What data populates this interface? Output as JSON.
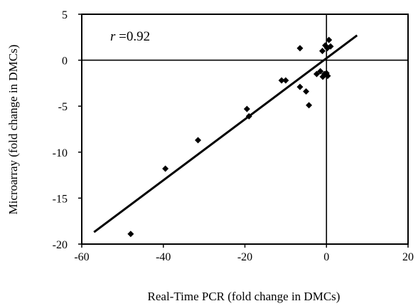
{
  "chart_data": {
    "type": "scatter",
    "xlabel": "Real-Time PCR (fold change in DMCs)",
    "ylabel": "Microarray (fold change in DMCs)",
    "xlim": [
      -60,
      20
    ],
    "ylim": [
      -20,
      5
    ],
    "x_ticks": [
      -60,
      -40,
      -20,
      0,
      20
    ],
    "y_ticks": [
      5,
      0,
      -5,
      -10,
      -15,
      -20
    ],
    "annotation": {
      "r_symbol": "r",
      "r_text": " =0.92"
    },
    "grid": false,
    "legend": "none",
    "reference_lines": {
      "x": 0,
      "y": 0
    },
    "series": [
      {
        "points": [
          {
            "x": -48.0,
            "y": -18.9
          },
          {
            "x": -39.5,
            "y": -11.8
          },
          {
            "x": -31.5,
            "y": -8.7
          },
          {
            "x": -19.5,
            "y": -5.3
          },
          {
            "x": -19.0,
            "y": -6.1
          },
          {
            "x": -11.0,
            "y": -2.2
          },
          {
            "x": -10.0,
            "y": -2.2
          },
          {
            "x": -6.5,
            "y": 1.3
          },
          {
            "x": -6.5,
            "y": -2.9
          },
          {
            "x": -5.0,
            "y": -3.4
          },
          {
            "x": -4.3,
            "y": -4.9
          },
          {
            "x": -2.4,
            "y": -1.5
          },
          {
            "x": -1.5,
            "y": -1.2
          },
          {
            "x": -1.0,
            "y": 1.0
          },
          {
            "x": -0.9,
            "y": -1.8
          },
          {
            "x": -0.5,
            "y": -1.5
          },
          {
            "x": -0.3,
            "y": 1.6
          },
          {
            "x": 0.0,
            "y": -1.4
          },
          {
            "x": 0.2,
            "y": 1.3
          },
          {
            "x": 0.3,
            "y": -1.7
          },
          {
            "x": 0.6,
            "y": 2.2
          },
          {
            "x": 1.0,
            "y": 1.5
          }
        ]
      }
    ],
    "trendline": {
      "x": [
        -57,
        7.5
      ],
      "y": [
        -18.7,
        2.7
      ]
    },
    "colors": {
      "marker": "#000000",
      "line": "#000000",
      "axes": "#000000"
    }
  }
}
